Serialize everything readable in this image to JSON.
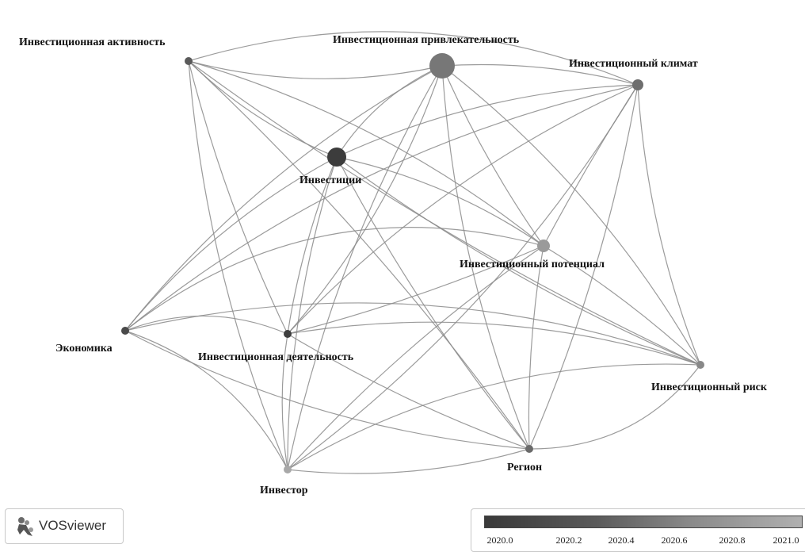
{
  "nodes": [
    {
      "id": "activity",
      "label": "Инвестиционная активность"
    },
    {
      "id": "attract",
      "label": "Инвестиционная привлекательность"
    },
    {
      "id": "climate",
      "label": "Инвестиционный климат"
    },
    {
      "id": "investments",
      "label": "Инвестиции"
    },
    {
      "id": "potential",
      "label": "Инвестиционный потенциал"
    },
    {
      "id": "economy",
      "label": "Экономика"
    },
    {
      "id": "deyat",
      "label": "Инвестиционная деятельность"
    },
    {
      "id": "risk",
      "label": "Инвестиционный риск"
    },
    {
      "id": "region",
      "label": "Регион"
    },
    {
      "id": "investor",
      "label": "Инвестор"
    }
  ],
  "logo": {
    "text": "VOSviewer",
    "icon": "vosviewer-logo-icon"
  },
  "overlay_scale": {
    "ticks": [
      "2020.0",
      "2020.2",
      "2020.4",
      "2020.6",
      "2020.8",
      "2021.0"
    ],
    "color_start": "#3a3a3a",
    "color_end": "#b0b0b0"
  }
}
